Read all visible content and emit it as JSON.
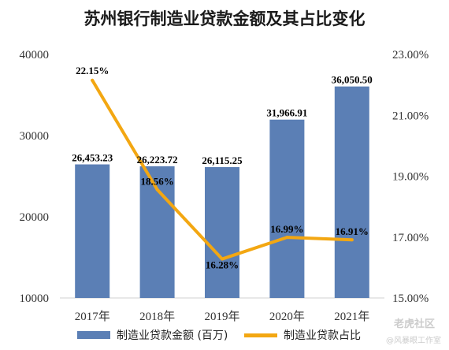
{
  "chart_data": {
    "type": "bar",
    "title": "苏州银行制造业贷款金额及其占比变化",
    "categories": [
      "2017年",
      "2018年",
      "2019年",
      "2020年",
      "2021年"
    ],
    "series": [
      {
        "name": "制造业贷款金额 (百万)",
        "type": "bar",
        "axis": "left",
        "values": [
          26453.23,
          26223.72,
          26115.25,
          31966.91,
          36050.5
        ],
        "labels": [
          "26,453.23",
          "26,223.72",
          "26,115.25",
          "31,966.91",
          "36,050.50"
        ],
        "color": "#5b7fb5"
      },
      {
        "name": "制造业贷款占比",
        "type": "line",
        "axis": "right",
        "values": [
          22.15,
          18.56,
          16.28,
          16.99,
          16.91
        ],
        "labels": [
          "22.15%",
          "18.56%",
          "16.28%",
          "16.99%",
          "16.91%"
        ],
        "color": "#f3a712"
      }
    ],
    "y_left": {
      "range": [
        10000,
        40000
      ],
      "ticks": [
        "10000",
        "20000",
        "30000",
        "40000"
      ],
      "tick_values": [
        10000,
        20000,
        30000,
        40000
      ]
    },
    "y_right": {
      "range": [
        15,
        23
      ],
      "ticks": [
        "15.00%",
        "17.00%",
        "19.00%",
        "21.00%",
        "23.00%"
      ],
      "tick_values": [
        15,
        17,
        19,
        21,
        23
      ]
    },
    "grid": false,
    "legend": "bottom"
  },
  "watermark": {
    "brand": "老虎社区",
    "sub": "@风暴眼工作室"
  }
}
